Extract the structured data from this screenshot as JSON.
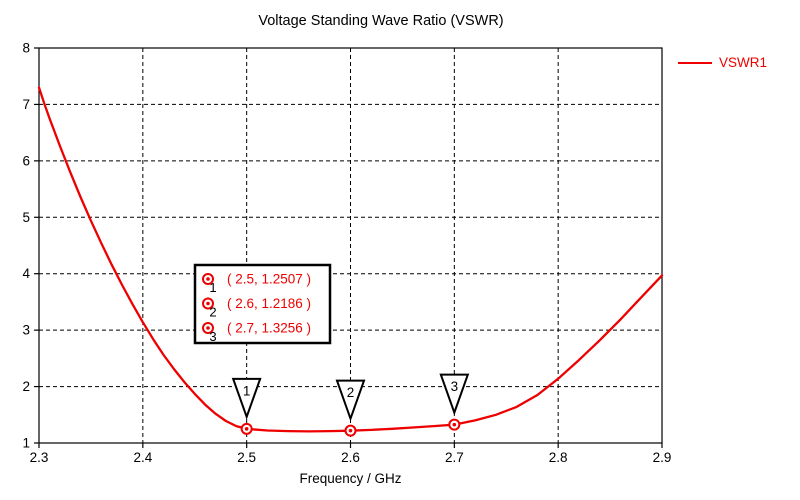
{
  "window": {
    "kind": "plot-window"
  },
  "colors": {
    "curve": "#ee0000",
    "axis": "#000000",
    "grid": "#000000",
    "marker_outline": "#000000",
    "text": "#000000",
    "background": "#ffffff"
  },
  "chart_data": {
    "type": "line",
    "title": "Voltage Standing Wave Ratio (VSWR)",
    "xlabel": "Frequency / GHz",
    "ylabel": "",
    "xlim": [
      2.3,
      2.9
    ],
    "ylim": [
      1,
      8
    ],
    "grid": "dashed",
    "legend_position": "top-right",
    "x_ticks": [
      {
        "v": 2.3,
        "label": "2.3"
      },
      {
        "v": 2.4,
        "label": "2.4"
      },
      {
        "v": 2.5,
        "label": "2.5"
      },
      {
        "v": 2.6,
        "label": "2.6"
      },
      {
        "v": 2.7,
        "label": "2.7"
      },
      {
        "v": 2.8,
        "label": "2.8"
      },
      {
        "v": 2.9,
        "label": "2.9"
      }
    ],
    "y_ticks": [
      {
        "v": 1,
        "label": "1"
      },
      {
        "v": 2,
        "label": "2"
      },
      {
        "v": 3,
        "label": "3"
      },
      {
        "v": 4,
        "label": "4"
      },
      {
        "v": 5,
        "label": "5"
      },
      {
        "v": 6,
        "label": "6"
      },
      {
        "v": 7,
        "label": "7"
      },
      {
        "v": 8,
        "label": "8"
      }
    ],
    "series": [
      {
        "name": "VSWR1",
        "color": "#ee0000",
        "points": [
          [
            2.3,
            7.3
          ],
          [
            2.305,
            7.02
          ],
          [
            2.31,
            6.76
          ],
          [
            2.32,
            6.27
          ],
          [
            2.33,
            5.8
          ],
          [
            2.34,
            5.36
          ],
          [
            2.35,
            4.94
          ],
          [
            2.36,
            4.54
          ],
          [
            2.37,
            4.16
          ],
          [
            2.38,
            3.8
          ],
          [
            2.39,
            3.46
          ],
          [
            2.4,
            3.14
          ],
          [
            2.41,
            2.84
          ],
          [
            2.42,
            2.56
          ],
          [
            2.43,
            2.31
          ],
          [
            2.44,
            2.08
          ],
          [
            2.45,
            1.87
          ],
          [
            2.46,
            1.68
          ],
          [
            2.47,
            1.52
          ],
          [
            2.48,
            1.39
          ],
          [
            2.49,
            1.3
          ],
          [
            2.5,
            1.2507
          ],
          [
            2.52,
            1.222
          ],
          [
            2.54,
            1.21
          ],
          [
            2.56,
            1.206
          ],
          [
            2.58,
            1.21
          ],
          [
            2.6,
            1.2186
          ],
          [
            2.62,
            1.233
          ],
          [
            2.64,
            1.252
          ],
          [
            2.66,
            1.275
          ],
          [
            2.68,
            1.299
          ],
          [
            2.7,
            1.3256
          ],
          [
            2.72,
            1.4
          ],
          [
            2.74,
            1.5
          ],
          [
            2.76,
            1.64
          ],
          [
            2.78,
            1.85
          ],
          [
            2.8,
            2.14
          ],
          [
            2.82,
            2.47
          ],
          [
            2.84,
            2.82
          ],
          [
            2.86,
            3.19
          ],
          [
            2.88,
            3.58
          ],
          [
            2.9,
            3.97
          ]
        ]
      }
    ],
    "markers": [
      {
        "label": "1",
        "x": 2.5,
        "y": 1.2507,
        "coord_text": "( 2.5, 1.2507 )"
      },
      {
        "label": "2",
        "x": 2.6,
        "y": 1.2186,
        "coord_text": "( 2.6, 1.2186 )"
      },
      {
        "label": "3",
        "x": 2.7,
        "y": 1.3256,
        "coord_text": "( 2.7, 1.3256 )"
      }
    ]
  }
}
